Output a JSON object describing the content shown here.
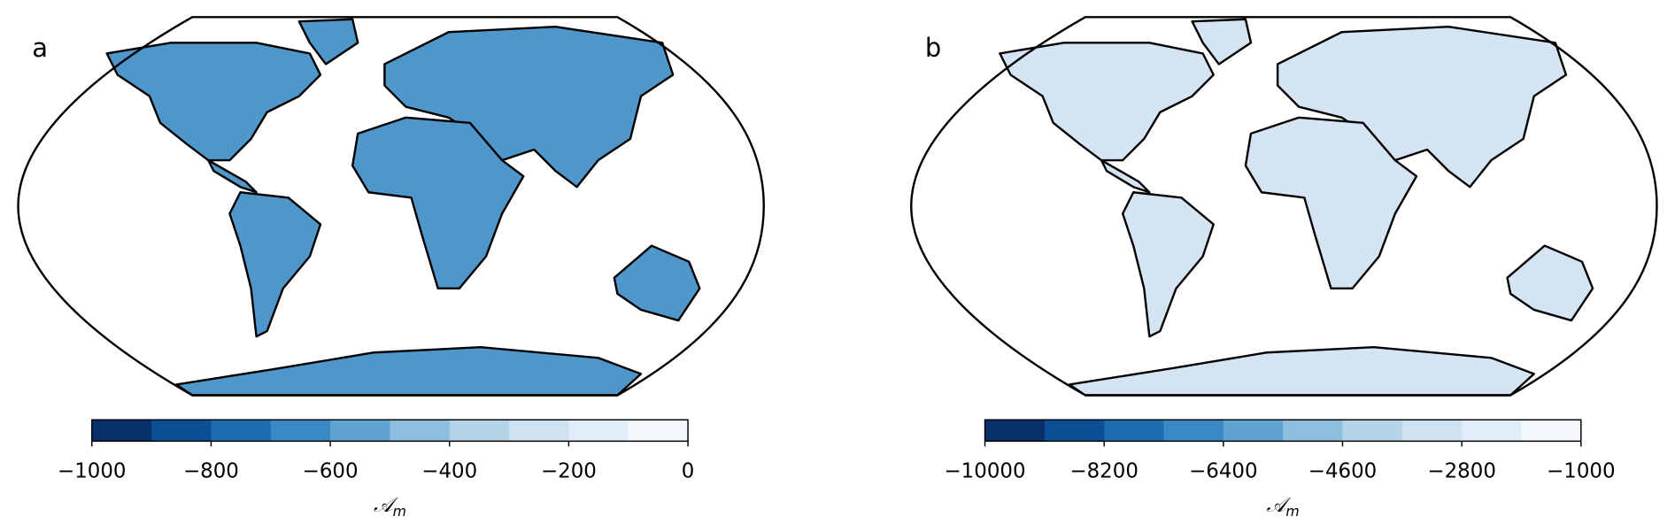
{
  "panels": [
    {
      "label": "a",
      "land_color": "#4f96cb",
      "colorbar": {
        "lim": [
          -1000,
          0
        ],
        "ticks": [
          {
            "value": -1000,
            "label": "−1000"
          },
          {
            "value": -800,
            "label": "−800"
          },
          {
            "value": -600,
            "label": "−600"
          },
          {
            "value": -400,
            "label": "−400"
          },
          {
            "value": -200,
            "label": "−200"
          },
          0
        ],
        "colors": [
          "#08306b",
          "#0b4f94",
          "#1c6cb0",
          "#3a89c4",
          "#5fa3d2",
          "#8cbfde",
          "#b4d4ea",
          "#cfe2f2",
          "#e1edf8",
          "#f3f8fd"
        ],
        "label": {
          "symbol": "𝒜",
          "subscript": "m"
        }
      }
    },
    {
      "label": "b",
      "land_color": "#d4e4f3",
      "colorbar": {
        "lim": [
          -10000,
          -1000
        ],
        "ticks": [
          {
            "value": -10000,
            "label": "−10000"
          },
          {
            "value": -8200,
            "label": "−8200"
          },
          {
            "value": -6400,
            "label": "−6400"
          },
          {
            "value": -4600,
            "label": "−4600"
          },
          {
            "value": -2800,
            "label": "−2800"
          },
          {
            "value": -1000,
            "label": "−1000"
          }
        ],
        "colors": [
          "#08306b",
          "#0b4f94",
          "#1c6cb0",
          "#3a89c4",
          "#5fa3d2",
          "#8cbfde",
          "#b4d4ea",
          "#cfe2f2",
          "#e1edf8",
          "#f3f8fd"
        ],
        "label": {
          "symbol": "𝒜",
          "subscript": "m"
        }
      }
    }
  ]
}
